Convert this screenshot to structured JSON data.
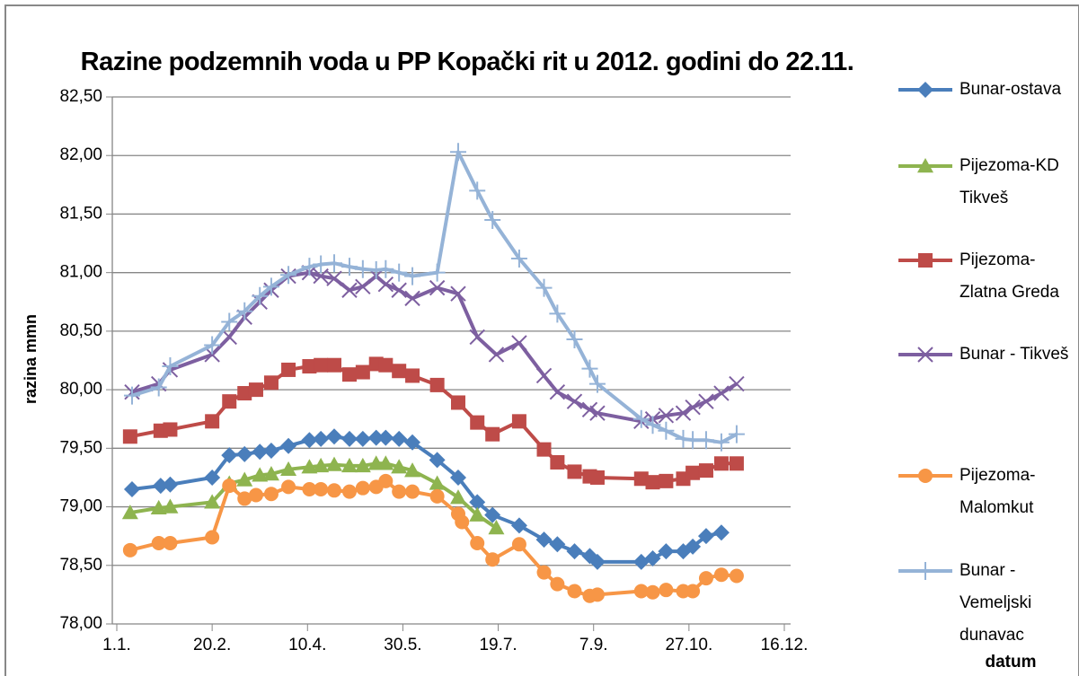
{
  "chart_data": {
    "type": "line",
    "title": "Razine podzemnih voda u PP Kopački rit u 2012. godini do 22.11.",
    "x_label": "datum",
    "y_label": "razina mmn",
    "xlim": [
      0,
      350
    ],
    "xticks": [
      {
        "value": 0,
        "label": "1.1."
      },
      {
        "value": 50,
        "label": "20.2."
      },
      {
        "value": 100,
        "label": "10.4."
      },
      {
        "value": 150,
        "label": "30.5."
      },
      {
        "value": 200,
        "label": "19.7."
      },
      {
        "value": 250,
        "label": "7.9."
      },
      {
        "value": 300,
        "label": "27.10."
      },
      {
        "value": 350,
        "label": "16.12."
      }
    ],
    "ylim": [
      78,
      82.5
    ],
    "yticks": [
      {
        "value": 78,
        "label": "78,00"
      },
      {
        "value": 78.5,
        "label": "78,50"
      },
      {
        "value": 79,
        "label": "79,00"
      },
      {
        "value": 79.5,
        "label": "79,50"
      },
      {
        "value": 80,
        "label": "80,00"
      },
      {
        "value": 80.5,
        "label": "80,50"
      },
      {
        "value": 81,
        "label": "81,00"
      },
      {
        "value": 81.5,
        "label": "81,50"
      },
      {
        "value": 82,
        "label": "82,00"
      },
      {
        "value": 82.5,
        "label": "82,50"
      }
    ],
    "grid": true,
    "legend": "right",
    "series": [
      {
        "name": "Bunar-ostava",
        "color": "#4a7ebb",
        "marker": "diamond",
        "x": [
          8,
          23,
          28,
          50,
          59,
          67,
          75,
          81,
          90,
          101,
          107,
          114,
          122,
          129,
          136,
          141,
          148,
          155,
          168,
          179,
          189,
          197,
          211,
          224,
          231,
          240,
          248,
          252,
          275,
          281,
          288,
          297,
          302,
          309,
          317
        ],
        "values": [
          79.15,
          79.18,
          79.19,
          79.25,
          79.44,
          79.45,
          79.47,
          79.48,
          79.52,
          79.57,
          79.58,
          79.6,
          79.58,
          79.58,
          79.59,
          79.59,
          79.58,
          79.55,
          79.4,
          79.25,
          79.04,
          78.93,
          78.84,
          78.72,
          78.68,
          78.62,
          78.58,
          78.53,
          78.53,
          78.56,
          78.62,
          78.62,
          78.66,
          78.75,
          78.78
        ]
      },
      {
        "name": "Pijezoma-KD Tikveš",
        "color": "#8eb44f",
        "marker": "triangle",
        "x": [
          7,
          22,
          28,
          50,
          59,
          67,
          75,
          81,
          90,
          101,
          107,
          114,
          122,
          129,
          136,
          141,
          148,
          155,
          168,
          179,
          189,
          199
        ],
        "values": [
          78.95,
          78.99,
          79.0,
          79.04,
          79.2,
          79.23,
          79.27,
          79.28,
          79.32,
          79.34,
          79.35,
          79.36,
          79.35,
          79.35,
          79.37,
          79.37,
          79.34,
          79.31,
          79.2,
          79.08,
          78.93,
          78.82
        ]
      },
      {
        "name": "Pijezoma-Zlatna Greda",
        "color": "#be4b48",
        "marker": "square",
        "x": [
          7,
          23,
          28,
          50,
          59,
          67,
          73,
          81,
          90,
          101,
          107,
          114,
          122,
          129,
          136,
          141,
          148,
          155,
          168,
          179,
          189,
          197,
          211,
          224,
          231,
          240,
          248,
          252,
          275,
          281,
          288,
          297,
          302,
          309,
          317,
          325
        ],
        "values": [
          79.6,
          79.65,
          79.66,
          79.73,
          79.9,
          79.97,
          80.0,
          80.06,
          80.17,
          80.2,
          80.21,
          80.21,
          80.13,
          80.15,
          80.22,
          80.21,
          80.16,
          80.12,
          80.04,
          79.89,
          79.72,
          79.62,
          79.73,
          79.49,
          79.38,
          79.3,
          79.26,
          79.25,
          79.24,
          79.21,
          79.22,
          79.24,
          79.29,
          79.31,
          79.37,
          79.37
        ]
      },
      {
        "name": "Bunar - Tikveš",
        "color": "#7d5fa0",
        "marker": "x",
        "x": [
          8,
          22,
          28,
          50,
          59,
          67,
          75,
          81,
          90,
          101,
          107,
          114,
          122,
          129,
          136,
          141,
          148,
          155,
          168,
          179,
          189,
          199,
          211,
          224,
          231,
          240,
          248,
          252,
          275,
          281,
          288,
          297,
          302,
          309,
          317,
          325
        ],
        "values": [
          79.98,
          80.05,
          80.17,
          80.3,
          80.45,
          80.62,
          80.75,
          80.85,
          80.97,
          81.0,
          80.97,
          80.95,
          80.85,
          80.88,
          80.97,
          80.9,
          80.85,
          80.78,
          80.87,
          80.82,
          80.45,
          80.3,
          80.4,
          80.12,
          79.98,
          79.9,
          79.83,
          79.8,
          79.73,
          79.75,
          79.78,
          79.8,
          79.85,
          79.9,
          79.97,
          80.05
        ]
      },
      {
        "name": "Pijezoma-Malomkut",
        "color": "#f79646",
        "marker": "circle",
        "x": [
          7,
          22,
          28,
          50,
          59,
          67,
          73,
          81,
          90,
          101,
          107,
          114,
          122,
          129,
          136,
          141,
          148,
          155,
          168,
          179,
          181,
          189,
          197,
          211,
          224,
          231,
          240,
          248,
          252,
          275,
          281,
          288,
          297,
          302,
          309,
          317,
          325
        ],
        "values": [
          78.63,
          78.69,
          78.69,
          78.74,
          79.18,
          79.07,
          79.1,
          79.11,
          79.17,
          79.15,
          79.15,
          79.14,
          79.13,
          79.16,
          79.17,
          79.22,
          79.13,
          79.13,
          79.09,
          78.94,
          78.87,
          78.69,
          78.55,
          78.68,
          78.44,
          78.34,
          78.28,
          78.24,
          78.25,
          78.28,
          78.27,
          78.29,
          78.28,
          78.28,
          78.39,
          78.42,
          78.41
        ]
      },
      {
        "name": "Bunar - Vemeljski dunavac",
        "color": "#95b3d7",
        "marker": "plus",
        "x": [
          8,
          22,
          28,
          50,
          59,
          67,
          75,
          81,
          90,
          101,
          107,
          114,
          122,
          129,
          136,
          141,
          148,
          155,
          168,
          179,
          189,
          197,
          211,
          224,
          231,
          240,
          248,
          252,
          275,
          281,
          288,
          297,
          302,
          309,
          317,
          325
        ],
        "values": [
          79.95,
          80.02,
          80.2,
          80.38,
          80.58,
          80.67,
          80.8,
          80.88,
          80.98,
          81.05,
          81.07,
          81.08,
          81.05,
          81.03,
          81.02,
          81.03,
          81.0,
          80.97,
          81.0,
          82.03,
          81.7,
          81.45,
          81.12,
          80.87,
          80.65,
          80.43,
          80.18,
          80.05,
          79.75,
          79.7,
          79.65,
          79.58,
          79.57,
          79.57,
          79.55,
          79.62
        ]
      }
    ]
  }
}
